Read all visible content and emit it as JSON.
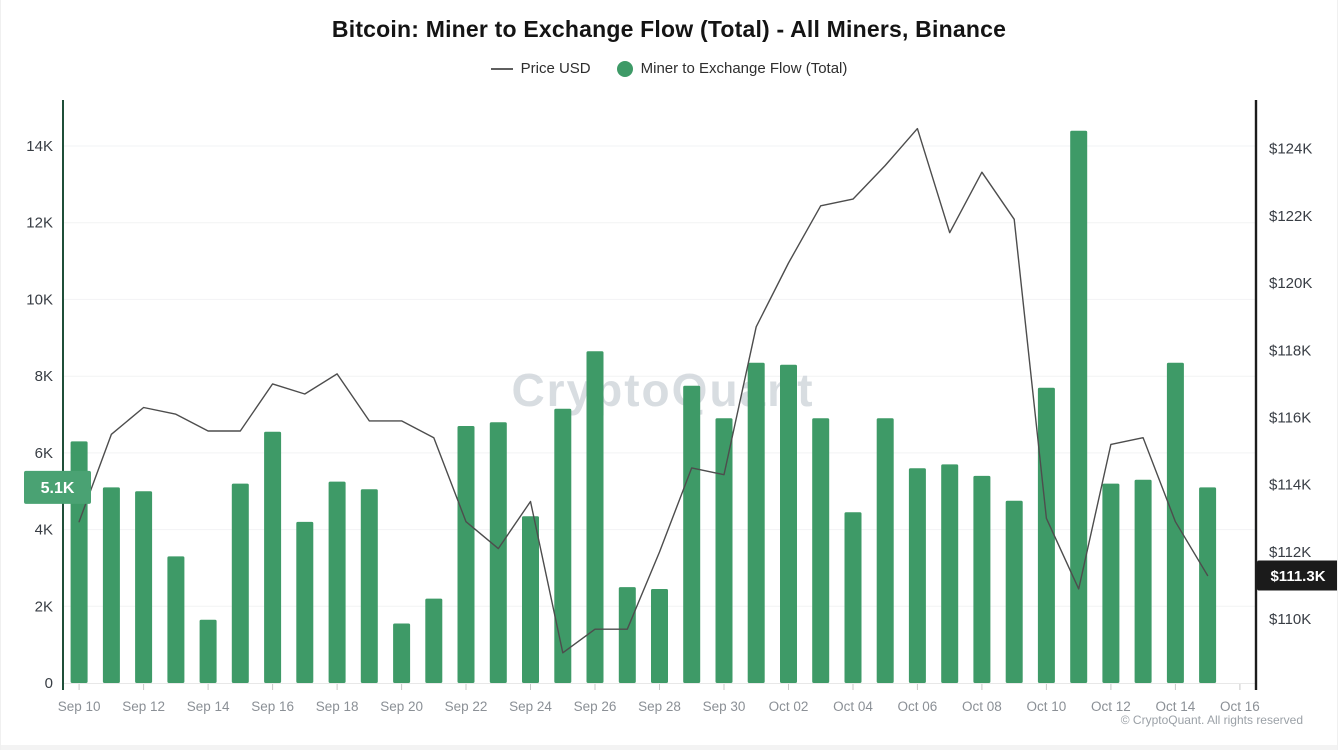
{
  "title": "Bitcoin: Miner to Exchange Flow (Total) - All Miners, Binance",
  "legend": {
    "price": {
      "label": "Price USD",
      "marker": "line",
      "color": "#5f5f5f"
    },
    "flow": {
      "label": "Miner to Exchange Flow (Total)",
      "marker": "dot",
      "color": "#3e9a67"
    }
  },
  "watermark": "CryptoQuant",
  "copyright": "© CryptoQuant. All rights reserved",
  "chart_data": {
    "type": "bar+line",
    "x": [
      "Sep 10",
      "Sep 11",
      "Sep 12",
      "Sep 13",
      "Sep 14",
      "Sep 15",
      "Sep 16",
      "Sep 17",
      "Sep 18",
      "Sep 19",
      "Sep 20",
      "Sep 21",
      "Sep 22",
      "Sep 23",
      "Sep 24",
      "Sep 25",
      "Sep 26",
      "Sep 27",
      "Sep 28",
      "Sep 29",
      "Sep 30",
      "Oct 01",
      "Oct 02",
      "Oct 03",
      "Oct 04",
      "Oct 05",
      "Oct 06",
      "Oct 07",
      "Oct 08",
      "Oct 09",
      "Oct 10",
      "Oct 11",
      "Oct 12",
      "Oct 13",
      "Oct 14",
      "Oct 15"
    ],
    "x_tick_labels": [
      "Sep 10",
      "Sep 12",
      "Sep 14",
      "Sep 16",
      "Sep 18",
      "Sep 20",
      "Sep 22",
      "Sep 24",
      "Sep 26",
      "Sep 28",
      "Sep 30",
      "Oct 02",
      "Oct 04",
      "Oct 06",
      "Oct 08",
      "Oct 10",
      "Oct 12",
      "Oct 14",
      "Oct 16"
    ],
    "series": [
      {
        "name": "Miner to Exchange Flow (Total)",
        "type": "bar",
        "axis": "left",
        "unit": "K",
        "color": "#3e9a67",
        "values": [
          6.3,
          5.1,
          5.0,
          3.3,
          1.65,
          5.2,
          6.55,
          4.2,
          5.25,
          5.05,
          1.55,
          2.2,
          6.7,
          6.8,
          4.35,
          7.15,
          8.65,
          2.5,
          2.45,
          7.75,
          6.9,
          8.35,
          8.3,
          6.9,
          4.45,
          6.9,
          5.6,
          5.7,
          5.4,
          4.75,
          7.7,
          14.4,
          5.2,
          5.3,
          8.35,
          5.1
        ]
      },
      {
        "name": "Price USD",
        "type": "line",
        "axis": "right",
        "unit": "$K",
        "color": "#4d4d4d",
        "values": [
          112.9,
          115.5,
          116.3,
          116.1,
          115.6,
          115.6,
          117.0,
          116.7,
          117.3,
          115.9,
          115.9,
          115.4,
          112.9,
          112.1,
          113.5,
          109.0,
          109.7,
          109.7,
          112.0,
          114.5,
          114.3,
          118.7,
          120.6,
          122.3,
          122.5,
          123.5,
          124.6,
          121.5,
          123.3,
          121.9,
          113.0,
          110.9,
          115.2,
          115.4,
          112.9,
          111.3
        ]
      }
    ],
    "left_axis": {
      "ticks": [
        "0",
        "2K",
        "4K",
        "6K",
        "8K",
        "10K",
        "12K",
        "14K"
      ],
      "tick_values": [
        0,
        2,
        4,
        6,
        8,
        10,
        12,
        14
      ],
      "range": [
        0,
        15.2
      ],
      "badge": {
        "label": "5.1K",
        "value": 5.1,
        "bg": "#4aa273",
        "fg": "#ffffff"
      },
      "line_color": "#1f4f39"
    },
    "right_axis": {
      "ticks": [
        "$110K",
        "$112K",
        "$114K",
        "$116K",
        "$118K",
        "$120K",
        "$122K",
        "$124K"
      ],
      "tick_values": [
        110,
        112,
        114,
        116,
        118,
        120,
        122,
        124
      ],
      "range": [
        108.1,
        125.45
      ],
      "badge": {
        "label": "$111.3K",
        "value": 111.3,
        "bg": "#1b1b1b",
        "fg": "#ffffff"
      },
      "line_color": "#1c1c1c"
    },
    "grid": true,
    "legend_position": "top"
  }
}
